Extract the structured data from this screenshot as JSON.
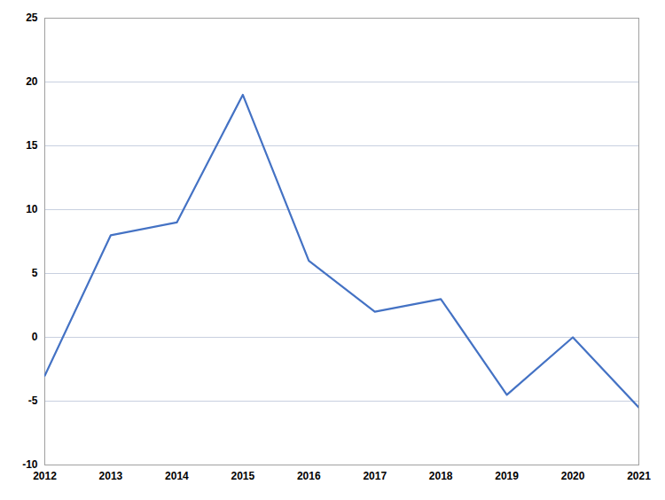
{
  "chart_data": {
    "type": "line",
    "x": [
      2012,
      2013,
      2014,
      2015,
      2016,
      2017,
      2018,
      2019,
      2020,
      2021
    ],
    "values": [
      -3,
      8,
      9,
      19,
      6,
      2,
      3,
      -4.5,
      0,
      -5.5
    ],
    "color": "#4472C4",
    "xlim": [
      2012,
      2021
    ],
    "xticks": [
      2012,
      2013,
      2014,
      2015,
      2016,
      2017,
      2018,
      2019,
      2020,
      2021
    ],
    "ylim": [
      -10,
      25
    ],
    "yticks": [
      -10,
      -5,
      0,
      5,
      10,
      15,
      20,
      25
    ],
    "grid": true
  }
}
